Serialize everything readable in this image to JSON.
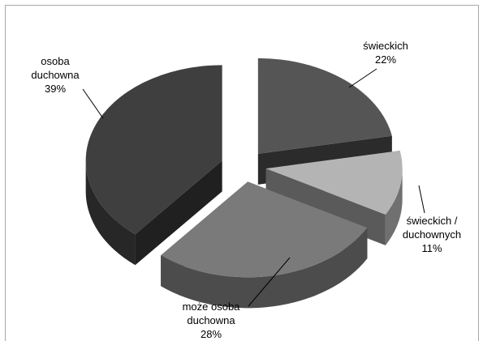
{
  "chart_data": {
    "type": "pie",
    "style": "3d-exploded",
    "title": "",
    "slices": [
      {
        "label_lines": [
          "świeckich",
          "22%"
        ],
        "value": 22,
        "color": "#555555"
      },
      {
        "label_lines": [
          "świeckich /",
          "duchownych",
          "11%"
        ],
        "value": 11,
        "color": "#b4b4b4"
      },
      {
        "label_lines": [
          "może osoba",
          "duchowna",
          "28%"
        ],
        "value": 28,
        "color": "#7a7a7a"
      },
      {
        "label_lines": [
          "osoba",
          "duchowna",
          "39%"
        ],
        "value": 39,
        "color": "#3f3f3f"
      }
    ],
    "legend": "none"
  }
}
